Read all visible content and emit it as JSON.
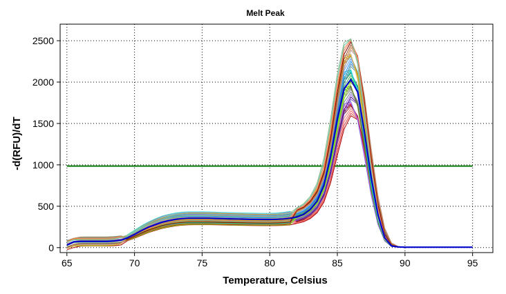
{
  "chart_data": {
    "type": "line",
    "title": "Melt Peak",
    "xlabel": "Temperature, Celsius",
    "ylabel": "-d(RFU)/dT",
    "xlim": [
      64.5,
      96.5
    ],
    "ylim": [
      -60,
      2700
    ],
    "x_ticks": [
      65,
      70,
      75,
      80,
      85,
      90,
      95
    ],
    "y_ticks": [
      0,
      500,
      1000,
      1500,
      2000,
      2500
    ],
    "grid": "dotted",
    "legend": "none",
    "threshold": {
      "value": 985,
      "x_range": [
        65,
        95
      ],
      "color": "#007a00"
    },
    "x": [
      65,
      65.5,
      66,
      66.5,
      67,
      67.5,
      68,
      68.5,
      69,
      69.5,
      70,
      70.5,
      71,
      71.5,
      72,
      72.5,
      73,
      73.5,
      74,
      74.5,
      75,
      75.5,
      76,
      76.5,
      77,
      77.5,
      78,
      78.5,
      79,
      79.5,
      80,
      80.5,
      81,
      81.5,
      82,
      82.5,
      83,
      83.5,
      84,
      84.5,
      85,
      85.5,
      86,
      86.5,
      87,
      87.5,
      88,
      88.5,
      89,
      89.5,
      90,
      90.5,
      91,
      91.5,
      92,
      92.5,
      93,
      93.5,
      94,
      94.5,
      95
    ],
    "representative_series": {
      "name": "",
      "color": "#0000cc",
      "values": [
        30,
        70,
        75,
        75,
        75,
        75,
        75,
        80,
        90,
        120,
        160,
        205,
        245,
        275,
        305,
        325,
        340,
        350,
        355,
        355,
        355,
        355,
        352,
        350,
        348,
        346,
        344,
        342,
        341,
        340,
        340,
        342,
        346,
        355,
        370,
        400,
        460,
        560,
        750,
        1100,
        1550,
        1920,
        2030,
        1880,
        1400,
        850,
        400,
        120,
        20,
        8,
        5,
        5,
        5,
        5,
        5,
        5,
        5,
        5,
        5,
        5,
        5
      ]
    },
    "family": {
      "count": 44,
      "description": "overlaid wells; peak heights range from about 1600 to 2580 at 86 Celsius",
      "colors": [
        "#b00000",
        "#d24d4d",
        "#ff6a6a",
        "#e07878",
        "#a52a2a",
        "#8b0000",
        "#c71585",
        "#ff69b4",
        "#7b68ee",
        "#6a5acd",
        "#4b0082",
        "#9370db",
        "#708090",
        "#808080",
        "#a9a9a9",
        "#696969",
        "#556b2f",
        "#6b8e23",
        "#9acd32",
        "#7cfc00",
        "#32cd32",
        "#3cb371",
        "#2e8b57",
        "#20b2aa",
        "#48d1cc",
        "#40e0d0",
        "#00ced1",
        "#5f9ea0",
        "#4682b4",
        "#1e90ff",
        "#6495ed",
        "#87ceeb",
        "#b8860b",
        "#daa520",
        "#cdcd00",
        "#d2b48c",
        "#bc8f8f",
        "#cd853f",
        "#a0522d",
        "#800000",
        "#ff7f50",
        "#e9967a",
        "#66cdaa",
        "#8fbc8f"
      ]
    }
  }
}
